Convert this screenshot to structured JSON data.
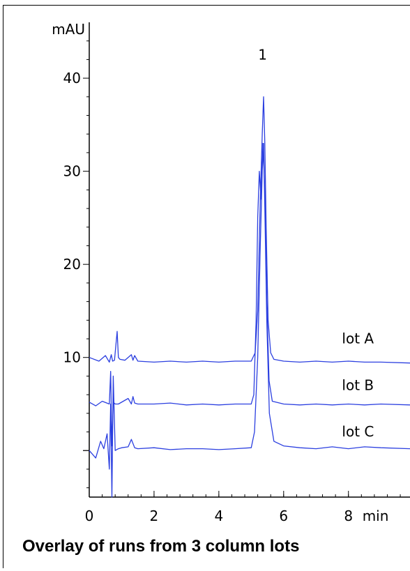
{
  "chart_data": {
    "type": "line",
    "caption": "Overlay of runs from 3 column lots",
    "ylabel": "mAU",
    "xlabel": "min",
    "xlim": [
      0,
      9.9
    ],
    "ylim": [
      -5,
      46
    ],
    "xticks": [
      0,
      2,
      4,
      6,
      8
    ],
    "yticks": [
      10,
      20,
      30,
      40
    ],
    "peak_label": {
      "text": "1",
      "x": 5.35,
      "y": 42
    },
    "color": "#2b3fe0",
    "series": [
      {
        "name": "lot A",
        "label_at": {
          "x": 7.8,
          "y": 11.5
        },
        "x": [
          0,
          0.3,
          0.5,
          0.62,
          0.68,
          0.72,
          0.78,
          0.86,
          0.9,
          0.95,
          1.1,
          1.3,
          1.35,
          1.4,
          1.5,
          2.0,
          2.5,
          3.0,
          3.5,
          4.0,
          4.5,
          5.0,
          5.12,
          5.2,
          5.28,
          5.34,
          5.38,
          5.42,
          5.46,
          5.52,
          5.6,
          5.7,
          6.0,
          6.5,
          7.0,
          7.5,
          8.0,
          8.5,
          9.0,
          9.9
        ],
        "y": [
          10,
          9.6,
          10.2,
          9.5,
          10.3,
          9.6,
          9.7,
          12.8,
          10,
          9.8,
          9.7,
          10.3,
          9.7,
          10.2,
          9.6,
          9.5,
          9.6,
          9.5,
          9.6,
          9.5,
          9.6,
          9.6,
          10.5,
          15,
          27,
          34,
          38,
          33,
          24,
          14,
          10.5,
          9.8,
          9.6,
          9.5,
          9.6,
          9.5,
          9.6,
          9.5,
          9.5,
          9.4
        ]
      },
      {
        "name": "lot B",
        "label_at": {
          "x": 7.8,
          "y": 6.5
        },
        "x": [
          0,
          0.2,
          0.4,
          0.62,
          0.66,
          0.7,
          0.74,
          0.8,
          0.9,
          1.2,
          1.3,
          1.35,
          1.4,
          1.5,
          2.0,
          2.5,
          3.0,
          3.5,
          4.0,
          4.5,
          5.0,
          5.08,
          5.15,
          5.2,
          5.25,
          5.3,
          5.36,
          5.42,
          5.48,
          5.55,
          5.65,
          6.0,
          6.5,
          7.0,
          7.5,
          8.0,
          8.5,
          9.0,
          9.9
        ],
        "y": [
          5.2,
          4.8,
          5.3,
          5.0,
          8.5,
          0.5,
          5.2,
          5.0,
          5.0,
          5.6,
          5.0,
          5.8,
          5.1,
          5.0,
          5.0,
          5.1,
          4.9,
          5.0,
          4.9,
          5.0,
          5.0,
          6.0,
          14,
          25,
          30,
          27,
          33,
          28,
          16,
          7.5,
          5.3,
          5.0,
          4.9,
          5.0,
          4.9,
          5.0,
          4.9,
          5.0,
          4.9
        ]
      },
      {
        "name": "lot C",
        "label_at": {
          "x": 7.8,
          "y": 1.5
        },
        "x": [
          0,
          0.2,
          0.35,
          0.45,
          0.55,
          0.62,
          0.66,
          0.7,
          0.74,
          0.8,
          0.9,
          1.0,
          1.2,
          1.3,
          1.4,
          1.5,
          2.0,
          2.5,
          3.0,
          3.5,
          4.0,
          4.5,
          5.0,
          5.1,
          5.2,
          5.28,
          5.34,
          5.38,
          5.42,
          5.48,
          5.56,
          5.7,
          6.0,
          6.5,
          7.0,
          7.5,
          8.0,
          8.5,
          9.0,
          9.9
        ],
        "y": [
          0,
          -0.8,
          1.0,
          0.2,
          1.8,
          -2,
          5,
          -5,
          8,
          0,
          0.2,
          0.3,
          0.4,
          1.2,
          0.3,
          0.2,
          0.3,
          0.1,
          0.2,
          0.2,
          0.1,
          0.2,
          0.3,
          2,
          10,
          22,
          30,
          33,
          26,
          14,
          4,
          1.0,
          0.5,
          0.3,
          0.2,
          0.4,
          0.2,
          0.4,
          0.3,
          0.2
        ]
      }
    ]
  }
}
